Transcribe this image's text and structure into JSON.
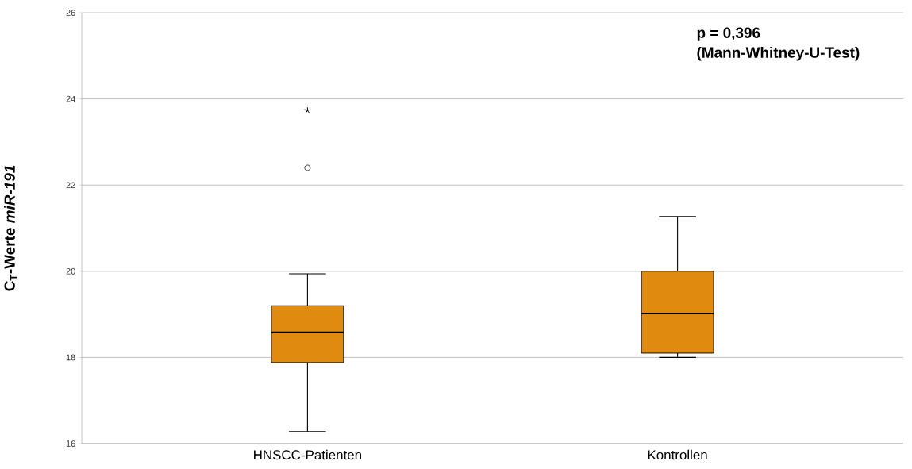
{
  "chart_data": {
    "type": "box",
    "ylabel": "C$_{T}$-Werte *miR-191*",
    "categories": [
      "HNSCC-Patienten",
      "Kontrollen"
    ],
    "boxes": [
      {
        "low": 16.28,
        "q1": 17.88,
        "median": 18.58,
        "q3": 19.2,
        "high": 19.94,
        "outliers": [
          22.4
        ]
      },
      {
        "low": 18.0,
        "q1": 18.1,
        "median": 19.02,
        "q3": 20.0,
        "high": 21.27
      }
    ],
    "series": [
      {
        "type": "scatter",
        "marker": "cross",
        "color": "#000000",
        "x": [
          "HNSCC-Patienten"
        ],
        "values": [
          23.73
        ]
      }
    ],
    "color": "#e08a10",
    "ylim": [
      16,
      26
    ],
    "yticks": [
      16,
      18,
      20,
      22,
      24,
      26
    ],
    "grid": "y",
    "annotations": [
      "p = 0,396",
      "(Mann-Whitney-U-Test)"
    ]
  }
}
